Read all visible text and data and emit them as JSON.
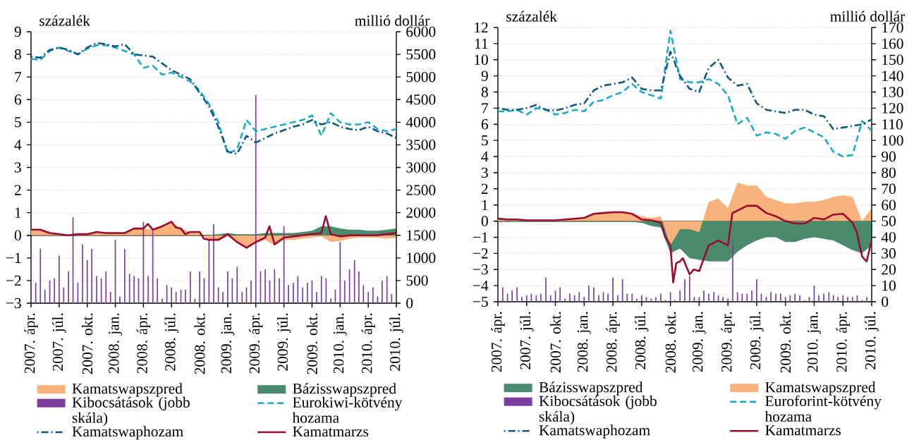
{
  "chart_data": [
    {
      "type": "line",
      "ylabel": "százalék",
      "y2label": "millió dollár",
      "grid": "y",
      "legend": "bottom",
      "x": [
        "2007-04",
        "2007-05",
        "2007-06",
        "2007-07",
        "2007-08",
        "2007-09",
        "2007-10",
        "2007-11",
        "2007-12",
        "2008-01",
        "2008-02",
        "2008-03",
        "2008-04",
        "2008-05",
        "2008-06",
        "2008-07",
        "2008-08",
        "2008-09",
        "2008-10",
        "2008-11",
        "2008-12",
        "2009-01",
        "2009-02",
        "2009-03",
        "2009-04",
        "2009-05",
        "2009-06",
        "2009-07",
        "2009-08",
        "2009-09",
        "2009-10",
        "2009-11",
        "2009-12",
        "2010-01",
        "2010-02",
        "2010-03",
        "2010-04",
        "2010-05",
        "2010-06",
        "2010-07"
      ],
      "xlim": [
        "2007-04-01",
        "2010-07-01"
      ],
      "xticks": [
        {
          "value": "2007-04-01",
          "label": "2007. ápr."
        },
        {
          "value": "2007-07-01",
          "label": "2007. júl."
        },
        {
          "value": "2007-10-01",
          "label": "2007. okt."
        },
        {
          "value": "2008-01-01",
          "label": "2008. jan."
        },
        {
          "value": "2008-04-01",
          "label": "2008. ápr."
        },
        {
          "value": "2008-07-01",
          "label": "2008. júl."
        },
        {
          "value": "2008-10-01",
          "label": "2008. okt."
        },
        {
          "value": "2009-01-01",
          "label": "2009. jan."
        },
        {
          "value": "2009-04-01",
          "label": "2009. ápr."
        },
        {
          "value": "2009-07-01",
          "label": "2009. júl."
        },
        {
          "value": "2009-10-01",
          "label": "2009. okt."
        },
        {
          "value": "2010-01-01",
          "label": "2010. jan."
        },
        {
          "value": "2010-04-01",
          "label": "2010. ápr."
        },
        {
          "value": "2010-07-01",
          "label": "2010. júl."
        }
      ],
      "ylim": [
        -3,
        9
      ],
      "yticks": [
        {
          "value": -3,
          "label": "−3"
        },
        {
          "value": -2,
          "label": "−2"
        },
        {
          "value": -1,
          "label": "−1"
        },
        0,
        1,
        2,
        3,
        4,
        5,
        6,
        7,
        8,
        9
      ],
      "y2lim": [
        0,
        6000
      ],
      "y2ticks": [
        0,
        500,
        1000,
        1500,
        2000,
        2500,
        3000,
        3500,
        4000,
        4500,
        5000,
        5500,
        6000
      ],
      "series": [
        {
          "name": "Kamatswapszpred",
          "type": "area",
          "color": "#f9b27c",
          "values": [
            0.25,
            0.25,
            0.1,
            0.05,
            0.0,
            0.05,
            0.05,
            0.15,
            0.1,
            0.1,
            0.1,
            0.3,
            0.3,
            0.25,
            0.4,
            0.6,
            0.3,
            0.15,
            0.1,
            -0.2,
            -0.25,
            -0.05,
            -0.35,
            -0.6,
            -0.35,
            -0.2,
            -0.45,
            -0.2,
            -0.2,
            -0.15,
            -0.1,
            -0.05,
            -0.3,
            -0.25,
            -0.15,
            -0.1,
            -0.1,
            -0.1,
            -0.15,
            -0.1
          ]
        },
        {
          "name": "Bázisswapszpred",
          "type": "area",
          "color": "#4b8b6d",
          "values": [
            0,
            0,
            0,
            0,
            0,
            0,
            0,
            0,
            0,
            0,
            0,
            0,
            0,
            0,
            0,
            0,
            0,
            0,
            0,
            0.02,
            0.05,
            0.1,
            0.05,
            0.05,
            0.05,
            0.1,
            0.1,
            0.1,
            0.1,
            0.15,
            0.2,
            0.4,
            0.4,
            0.3,
            0.25,
            0.25,
            0.2,
            0.2,
            0.25,
            0.3
          ]
        },
        {
          "name": "Kibocsátások (jobb skála)",
          "type": "bar",
          "axis": "y2",
          "color": "#7d3f9f",
          "x": [
            "2007-04-01",
            "2007-04-16",
            "2007-05-01",
            "2007-05-16",
            "2007-06-01",
            "2007-06-16",
            "2007-07-01",
            "2007-07-16",
            "2007-08-01",
            "2007-08-16",
            "2007-09-01",
            "2007-09-16",
            "2007-10-01",
            "2007-10-16",
            "2007-11-01",
            "2007-11-16",
            "2007-12-01",
            "2007-12-16",
            "2008-01-01",
            "2008-01-16",
            "2008-02-01",
            "2008-02-16",
            "2008-03-01",
            "2008-03-16",
            "2008-04-01",
            "2008-04-16",
            "2008-05-01",
            "2008-05-16",
            "2008-06-01",
            "2008-06-16",
            "2008-07-01",
            "2008-07-16",
            "2008-08-01",
            "2008-08-16",
            "2008-09-01",
            "2008-09-16",
            "2008-10-01",
            "2008-10-16",
            "2008-11-01",
            "2008-11-16",
            "2008-12-01",
            "2008-12-16",
            "2009-01-01",
            "2009-01-16",
            "2009-02-01",
            "2009-02-16",
            "2009-03-01",
            "2009-03-16",
            "2009-04-01",
            "2009-04-16",
            "2009-05-01",
            "2009-05-16",
            "2009-06-01",
            "2009-06-16",
            "2009-07-01",
            "2009-07-16",
            "2009-08-01",
            "2009-08-16",
            "2009-09-01",
            "2009-09-16",
            "2009-10-01",
            "2009-10-16",
            "2009-11-01",
            "2009-11-16",
            "2009-12-01",
            "2009-12-16",
            "2010-01-01",
            "2010-01-16",
            "2010-02-01",
            "2010-02-16",
            "2010-03-01",
            "2010-03-16",
            "2010-04-01",
            "2010-04-16",
            "2010-05-01",
            "2010-05-16",
            "2010-06-01",
            "2010-06-16",
            "2010-07-01"
          ],
          "values": [
            1150,
            450,
            1200,
            300,
            500,
            550,
            1050,
            350,
            700,
            1900,
            450,
            1300,
            950,
            1200,
            600,
            550,
            700,
            250,
            1400,
            150,
            1200,
            650,
            600,
            550,
            1800,
            600,
            1600,
            550,
            100,
            400,
            350,
            250,
            300,
            300,
            700,
            100,
            700,
            550,
            1400,
            1750,
            350,
            250,
            700,
            550,
            800,
            250,
            350,
            500,
            4600,
            700,
            750,
            500,
            750,
            550,
            1700,
            400,
            450,
            600,
            350,
            450,
            500,
            250,
            600,
            550,
            100,
            300,
            1350,
            500,
            750,
            950,
            700,
            400,
            250,
            350,
            150,
            500,
            600,
            200,
            450
          ]
        },
        {
          "name": "Eurokiwi-kötvény hozama",
          "line_style": "dashed",
          "color": "#1aabc9",
          "values": [
            7.8,
            7.75,
            8.15,
            8.3,
            8.15,
            8.0,
            8.25,
            8.4,
            8.4,
            8.3,
            8.15,
            8.0,
            7.4,
            7.5,
            7.1,
            7.2,
            7.0,
            6.8,
            6.4,
            5.8,
            5.0,
            3.6,
            3.8,
            5.1,
            4.6,
            4.7,
            4.8,
            4.9,
            5.0,
            5.1,
            5.3,
            4.4,
            5.4,
            5.0,
            4.9,
            4.9,
            5.0,
            4.7,
            4.6,
            4.7
          ]
        },
        {
          "name": "Kamatswaphozam",
          "line_style": "dashdot",
          "color": "#0e5a80",
          "values": [
            7.9,
            7.85,
            8.2,
            8.3,
            8.2,
            8.0,
            8.3,
            8.5,
            8.45,
            8.35,
            8.45,
            8.0,
            7.95,
            7.9,
            7.6,
            7.3,
            7.1,
            6.9,
            6.3,
            5.7,
            4.8,
            3.7,
            3.6,
            4.4,
            4.1,
            4.3,
            4.5,
            4.65,
            4.8,
            4.9,
            5.1,
            4.9,
            5.0,
            4.8,
            4.7,
            4.65,
            4.8,
            4.6,
            4.5,
            4.3
          ]
        },
        {
          "name": "Kamatmarzs",
          "line_style": "solid",
          "color": "#9a0c2f",
          "x": [
            "2007-04",
            "2007-05",
            "2007-06",
            "2007-07",
            "2007-08",
            "2007-09",
            "2007-10",
            "2007-11",
            "2007-12",
            "2008-01",
            "2008-02",
            "2008-03",
            "2008-04",
            "2008-04-15",
            "2008-05",
            "2008-06",
            "2008-07",
            "2008-07-15",
            "2008-08",
            "2008-08-15",
            "2008-09",
            "2008-10",
            "2008-10-15",
            "2008-11",
            "2008-12",
            "2009-01",
            "2009-02",
            "2009-03",
            "2009-04",
            "2009-05",
            "2009-05-15",
            "2009-06",
            "2009-07",
            "2009-08",
            "2009-09",
            "2009-10",
            "2009-11",
            "2009-11-15",
            "2009-12",
            "2010-01",
            "2010-02",
            "2010-03",
            "2010-04",
            "2010-05",
            "2010-06",
            "2010-07"
          ],
          "values": [
            0.25,
            0.25,
            0.1,
            0.05,
            0.0,
            0.05,
            0.05,
            0.15,
            0.1,
            0.1,
            0.1,
            0.3,
            0.3,
            0.5,
            0.25,
            0.4,
            0.6,
            0.35,
            0.3,
            0.05,
            0.15,
            0.15,
            -0.15,
            -0.2,
            -0.2,
            0.05,
            -0.3,
            -0.55,
            -0.3,
            -0.1,
            0.4,
            -0.4,
            -0.1,
            -0.05,
            0.0,
            0.05,
            0.1,
            0.85,
            0.05,
            -0.05,
            0.0,
            0.0,
            0.0,
            0.0,
            0.05,
            0.1
          ]
        }
      ]
    },
    {
      "type": "line",
      "ylabel": "százalék",
      "y2label": "millió dollár",
      "grid": "y",
      "legend": "bottom",
      "x": [
        "2007-04",
        "2007-05",
        "2007-06",
        "2007-07",
        "2007-08",
        "2007-09",
        "2007-10",
        "2007-11",
        "2007-12",
        "2008-01",
        "2008-02",
        "2008-03",
        "2008-04",
        "2008-05",
        "2008-06",
        "2008-07",
        "2008-08",
        "2008-09",
        "2008-10",
        "2008-11",
        "2008-12",
        "2009-01",
        "2009-02",
        "2009-03",
        "2009-04",
        "2009-05",
        "2009-06",
        "2009-07",
        "2009-08",
        "2009-09",
        "2009-10",
        "2009-11",
        "2009-12",
        "2010-01",
        "2010-02",
        "2010-03",
        "2010-04",
        "2010-05",
        "2010-06",
        "2010-07"
      ],
      "xlim": [
        "2007-04-01",
        "2010-07-01"
      ],
      "xticks": [
        {
          "value": "2007-04-01",
          "label": "2007. ápr."
        },
        {
          "value": "2007-07-01",
          "label": "2007. júl."
        },
        {
          "value": "2007-10-01",
          "label": "2007. okt."
        },
        {
          "value": "2008-01-01",
          "label": "2008. jan."
        },
        {
          "value": "2008-04-01",
          "label": "2008. ápr."
        },
        {
          "value": "2008-07-01",
          "label": "2008. júl."
        },
        {
          "value": "2008-10-01",
          "label": "2008. okt."
        },
        {
          "value": "2009-01-01",
          "label": "2009. jan."
        },
        {
          "value": "2009-04-01",
          "label": "2009. ápr."
        },
        {
          "value": "2009-07-01",
          "label": "2009. júl."
        },
        {
          "value": "2009-10-01",
          "label": "2009. okt."
        },
        {
          "value": "2010-01-01",
          "label": "2010. jan."
        },
        {
          "value": "2010-04-01",
          "label": "2010. ápr."
        },
        {
          "value": "2010-07-01",
          "label": "2010. júl."
        }
      ],
      "ylim": [
        -5,
        12
      ],
      "yticks": [
        {
          "value": -5,
          "label": "−5"
        },
        {
          "value": -4,
          "label": "−4"
        },
        {
          "value": -3,
          "label": "−3"
        },
        {
          "value": -2,
          "label": "−2"
        },
        {
          "value": -1,
          "label": "−1"
        },
        0,
        1,
        2,
        3,
        4,
        5,
        6,
        7,
        8,
        9,
        10,
        11,
        12
      ],
      "y2lim": [
        0,
        170
      ],
      "y2ticks": [
        0,
        10,
        20,
        30,
        40,
        50,
        60,
        70,
        80,
        90,
        100,
        110,
        120,
        130,
        140,
        150,
        160,
        170
      ],
      "series": [
        {
          "name": "Bázisswapszpred",
          "type": "area",
          "color": "#4b8b6d",
          "values": [
            -0.05,
            -0.05,
            -0.05,
            -0.05,
            -0.05,
            -0.05,
            -0.05,
            -0.05,
            -0.05,
            -0.05,
            -0.05,
            -0.05,
            -0.05,
            -0.05,
            -0.05,
            -0.1,
            -0.3,
            -0.4,
            -2.0,
            -1.7,
            -2.3,
            -2.4,
            -2.5,
            -2.5,
            -2.5,
            -1.9,
            -1.5,
            -1.2,
            -1.0,
            -1.0,
            -1.3,
            -1.3,
            -1.1,
            -1.0,
            -1.1,
            -1.2,
            -1.5,
            -1.8,
            -2.0,
            -1.5
          ]
        },
        {
          "name": "Kamatswapszpred",
          "type": "area",
          "color": "#f9b27c",
          "values": [
            0.15,
            0.1,
            0.1,
            0.05,
            0.05,
            0.05,
            0.05,
            0.1,
            0.15,
            0.2,
            0.45,
            0.55,
            0.6,
            0.6,
            0.5,
            0.3,
            0.2,
            0.3,
            -1.5,
            -0.5,
            -0.5,
            -0.7,
            1.2,
            1.4,
            0.8,
            2.4,
            2.2,
            2.2,
            1.5,
            1.3,
            1.1,
            1.1,
            1.2,
            1.2,
            1.3,
            1.5,
            1.6,
            1.5,
            0.0,
            0.8
          ]
        },
        {
          "name": "Kibocsátások (jobb skála)",
          "type": "bar",
          "axis": "y2",
          "color": "#7d3f9f",
          "x": [
            "2007-04-01",
            "2007-04-16",
            "2007-05-01",
            "2007-05-16",
            "2007-06-01",
            "2007-06-16",
            "2007-07-01",
            "2007-07-16",
            "2007-08-01",
            "2007-08-16",
            "2007-09-01",
            "2007-09-16",
            "2007-10-01",
            "2007-10-16",
            "2007-11-01",
            "2007-11-16",
            "2007-12-01",
            "2007-12-16",
            "2008-01-01",
            "2008-01-16",
            "2008-02-01",
            "2008-02-16",
            "2008-03-01",
            "2008-03-16",
            "2008-04-01",
            "2008-04-16",
            "2008-05-01",
            "2008-05-16",
            "2008-06-01",
            "2008-06-16",
            "2008-07-01",
            "2008-07-16",
            "2008-08-01",
            "2008-08-16",
            "2008-09-01",
            "2008-09-16",
            "2008-10-01",
            "2008-10-16",
            "2008-11-01",
            "2008-11-16",
            "2008-12-01",
            "2008-12-16",
            "2009-01-01",
            "2009-01-16",
            "2009-02-01",
            "2009-02-16",
            "2009-03-01",
            "2009-03-16",
            "2009-04-01",
            "2009-04-16",
            "2009-05-01",
            "2009-05-16",
            "2009-06-01",
            "2009-06-16",
            "2009-07-01",
            "2009-07-16",
            "2009-08-01",
            "2009-08-16",
            "2009-09-01",
            "2009-09-16",
            "2009-10-01",
            "2009-10-16",
            "2009-11-01",
            "2009-11-16",
            "2009-12-01",
            "2009-12-16",
            "2010-01-01",
            "2010-01-16",
            "2010-02-01",
            "2010-02-16",
            "2010-03-01",
            "2010-03-16",
            "2010-04-01",
            "2010-04-16",
            "2010-05-01",
            "2010-05-16",
            "2010-06-01",
            "2010-06-16",
            "2010-07-01"
          ],
          "values": [
            2,
            9,
            5,
            7,
            9,
            3,
            4,
            5,
            4,
            5,
            15,
            4,
            7,
            9,
            2,
            5,
            4,
            6,
            3,
            10,
            9,
            4,
            6,
            5,
            15,
            4,
            14,
            5,
            5,
            2,
            4,
            3,
            2,
            3,
            5,
            1,
            6,
            1,
            7,
            14,
            16,
            3,
            3,
            7,
            5,
            6,
            4,
            3,
            2,
            37,
            6,
            5,
            5,
            7,
            14,
            5,
            3,
            6,
            5,
            5,
            3,
            4,
            5,
            4,
            1,
            3,
            10,
            4,
            5,
            6,
            4,
            3,
            4,
            3,
            3,
            4,
            1,
            3,
            2
          ]
        },
        {
          "name": "Euroforint-kötvény hozama",
          "line_style": "dashed",
          "color": "#1aabc9",
          "values": [
            6.8,
            6.8,
            6.9,
            6.6,
            7.0,
            6.9,
            6.6,
            6.7,
            6.9,
            6.8,
            7.4,
            7.5,
            7.8,
            8.0,
            8.5,
            8.0,
            7.8,
            7.6,
            11.8,
            8.8,
            8.6,
            8.6,
            8.8,
            8.5,
            7.8,
            6.0,
            6.4,
            5.3,
            5.5,
            5.4,
            5.1,
            5.6,
            5.8,
            5.5,
            5.2,
            4.3,
            4.0,
            4.1,
            6.2,
            5.6
          ]
        },
        {
          "name": "Kamatswaphozam",
          "line_style": "dashdot",
          "color": "#0e5a80",
          "values": [
            7.0,
            6.9,
            6.9,
            7.0,
            7.2,
            6.9,
            6.85,
            7.0,
            7.2,
            7.3,
            8.1,
            8.4,
            8.5,
            8.6,
            8.9,
            8.2,
            8.1,
            8.1,
            10.5,
            9.0,
            8.2,
            8.0,
            9.5,
            10.0,
            8.9,
            8.4,
            8.5,
            7.3,
            6.9,
            6.8,
            6.7,
            6.9,
            6.9,
            6.6,
            6.5,
            5.7,
            5.8,
            5.9,
            6.0,
            6.3
          ]
        },
        {
          "name": "Kamatmarzs",
          "line_style": "solid",
          "color": "#9a0c2f",
          "x": [
            "2007-04",
            "2007-05",
            "2007-06",
            "2007-07",
            "2007-08",
            "2007-09",
            "2007-10",
            "2007-11",
            "2007-12",
            "2008-01",
            "2008-02",
            "2008-03",
            "2008-04",
            "2008-05",
            "2008-06",
            "2008-07",
            "2008-08",
            "2008-09",
            "2008-09-15",
            "2008-10",
            "2008-10-10",
            "2008-10-20",
            "2008-11",
            "2008-11-10",
            "2008-12",
            "2008-12-15",
            "2009-01",
            "2009-02",
            "2009-03",
            "2009-04",
            "2009-04-15",
            "2009-05",
            "2009-06",
            "2009-07",
            "2009-08",
            "2009-09",
            "2009-10",
            "2009-11",
            "2009-12",
            "2010-01",
            "2010-02",
            "2010-03",
            "2010-04",
            "2010-05",
            "2010-05-15",
            "2010-06",
            "2010-06-15",
            "2010-07"
          ],
          "values": [
            0.15,
            0.1,
            0.1,
            0.05,
            0.05,
            0.05,
            0.05,
            0.1,
            0.15,
            0.2,
            0.45,
            0.5,
            0.55,
            0.55,
            0.45,
            0.1,
            0.05,
            -0.1,
            -1.0,
            -1.5,
            -3.8,
            -2.6,
            -2.5,
            -2.3,
            -3.3,
            -3.0,
            -3.1,
            -1.5,
            -1.2,
            -1.5,
            0.5,
            0.65,
            0.95,
            0.95,
            0.5,
            0.3,
            0.0,
            -0.15,
            -0.15,
            0.2,
            0.1,
            0.4,
            0.45,
            -0.1,
            -0.7,
            -2.2,
            -2.5,
            -1.2
          ]
        }
      ]
    }
  ]
}
